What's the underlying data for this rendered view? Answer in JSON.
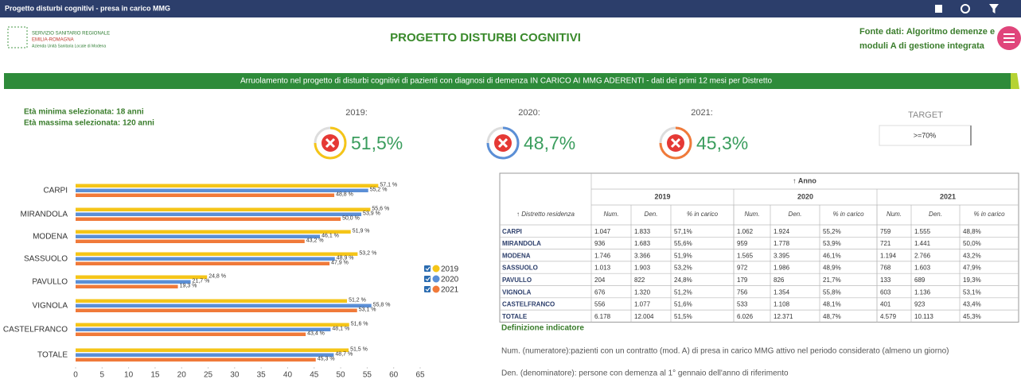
{
  "topbar": {
    "title": "Progetto disturbi cognitivi - presa in carico MMG"
  },
  "header": {
    "logo": [
      "SERVIZIO SANITARIO REGIONALE",
      "EMILIA-ROMAGNA",
      "Azienda Unità Sanitaria Locale di Modena"
    ],
    "title": "PROGETTO DISTURBI COGNITIVI",
    "source": [
      "Fonte dati: Algoritmo demenze e",
      "moduli A di gestione integrata"
    ]
  },
  "banner": "Arruolamento nel progetto di disturbi cognitivi di pazienti con diagnosi di demenza IN CARICO AI MMG ADERENTI - dati dei primi 12 mesi per Distretto",
  "filters": [
    "Età minima selezionata: 18 anni",
    "Età massima selezionata: 120 anni"
  ],
  "kpis": [
    {
      "label": "2019:",
      "value": "51,5%"
    },
    {
      "label": "2020:",
      "value": "48,7%"
    },
    {
      "label": "2021:",
      "value": "45,3%"
    }
  ],
  "target": {
    "label": "TARGET",
    "value": ">=70%"
  },
  "chart_data": {
    "type": "hbar",
    "categories": [
      "CARPI",
      "MIRANDOLA",
      "MODENA",
      "SASSUOLO",
      "PAVULLO",
      "VIGNOLA",
      "CASTELFRANCO",
      "TOTALE"
    ],
    "series": [
      {
        "name": "2019",
        "color": "#f5c518",
        "values": [
          57.1,
          55.6,
          51.9,
          53.2,
          24.8,
          51.2,
          51.6,
          51.5
        ],
        "value_labels": [
          "57,1 %",
          "55,6 %",
          "51,9 %",
          "53,2 %",
          "24,8 %",
          "51,2 %",
          "51,6 %",
          "51,5 %"
        ]
      },
      {
        "name": "2020",
        "color": "#5b8fd6",
        "values": [
          55.2,
          53.9,
          46.1,
          48.9,
          21.7,
          55.8,
          48.1,
          48.7
        ],
        "value_labels": [
          "55,2 %",
          "53,9 %",
          "46,1 %",
          "48,9 %",
          "21,7 %",
          "55,8 %",
          "48,1 %",
          "48,7 %"
        ]
      },
      {
        "name": "2021",
        "color": "#f07a3a",
        "values": [
          48.8,
          50.0,
          43.2,
          47.9,
          19.3,
          53.1,
          43.4,
          45.3
        ],
        "value_labels": [
          "48,8 %",
          "50,0 %",
          "43,2 %",
          "47,9 %",
          "19,3 %",
          "53,1 %",
          "43,4 %",
          "45,3 %"
        ]
      }
    ],
    "xlim": [
      0,
      65
    ],
    "xticks": [
      0,
      5,
      10,
      15,
      20,
      25,
      30,
      35,
      40,
      45,
      50,
      55,
      60,
      65
    ]
  },
  "table": {
    "header": "↑ Anno",
    "years": [
      "2019",
      "2020",
      "2021"
    ],
    "columns": [
      "↑ Distretto residenza",
      "Num.",
      "Den.",
      "% in carico",
      "Num.",
      "Den.",
      "% in carico",
      "Num.",
      "Den.",
      "% in carico"
    ],
    "rows": [
      [
        "CARPI",
        "1.047",
        "1.833",
        "57,1%",
        "1.062",
        "1.924",
        "55,2%",
        "759",
        "1.555",
        "48,8%"
      ],
      [
        "MIRANDOLA",
        "936",
        "1.683",
        "55,6%",
        "959",
        "1.778",
        "53,9%",
        "721",
        "1.441",
        "50,0%"
      ],
      [
        "MODENA",
        "1.746",
        "3.366",
        "51,9%",
        "1.565",
        "3.395",
        "46,1%",
        "1.194",
        "2.766",
        "43,2%"
      ],
      [
        "SASSUOLO",
        "1.013",
        "1.903",
        "53,2%",
        "972",
        "1.986",
        "48,9%",
        "768",
        "1.603",
        "47,9%"
      ],
      [
        "PAVULLO",
        "204",
        "822",
        "24,8%",
        "179",
        "826",
        "21,7%",
        "133",
        "689",
        "19,3%"
      ],
      [
        "VIGNOLA",
        "676",
        "1.320",
        "51,2%",
        "756",
        "1.354",
        "55,8%",
        "603",
        "1.136",
        "53,1%"
      ],
      [
        "CASTELFRANCO",
        "556",
        "1.077",
        "51,6%",
        "533",
        "1.108",
        "48,1%",
        "401",
        "923",
        "43,4%"
      ],
      [
        "TOTALE",
        "6.178",
        "12.004",
        "51,5%",
        "6.026",
        "12.371",
        "48,7%",
        "4.579",
        "10.113",
        "45,3%"
      ]
    ]
  },
  "definitions": {
    "title": "Definizione indicatore",
    "items": [
      "Num. (numeratore):pazienti con un contratto (mod. A) di presa in carico MMG attivo nel periodo considerato (almeno un giorno)",
      "Den. (denominatore): persone con demenza al 1° gennaio dell'anno di riferimento"
    ]
  }
}
